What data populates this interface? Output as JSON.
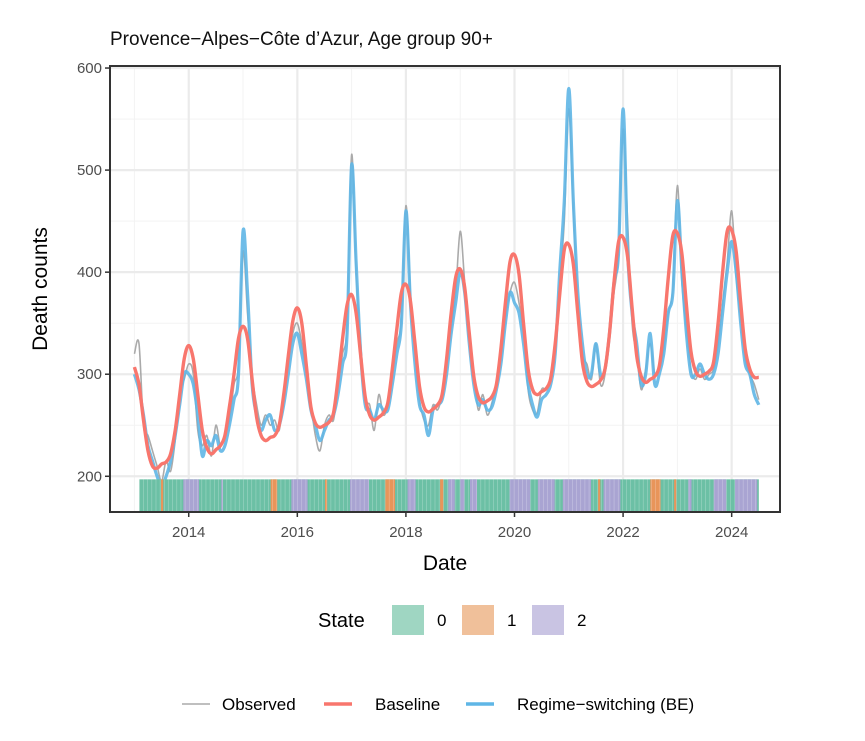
{
  "chart_data": {
    "type": "line",
    "title": "Provence−Alpes−Côte d’Azur, Age group 90+",
    "xlabel": "Date",
    "ylabel": "Death counts",
    "xlim": [
      2012.55,
      2024.89
    ],
    "ylim": [
      165,
      602
    ],
    "x_ticks": [
      2014,
      2016,
      2018,
      2020,
      2022,
      2024
    ],
    "x_tick_labels": [
      "2014",
      "2016",
      "2018",
      "2020",
      "2022",
      "2024"
    ],
    "y_ticks": [
      200,
      300,
      400,
      500,
      600
    ],
    "y_tick_labels": [
      "200",
      "300",
      "400",
      "500",
      "600"
    ],
    "grid": true,
    "x_start": 2013.0,
    "x_step_years": 0.083333,
    "series": [
      {
        "name": "Observed",
        "color": "#aaaaaa",
        "values": [
          320,
          330,
          250,
          240,
          225,
          210,
          195,
          215,
          205,
          235,
          280,
          295,
          310,
          300,
          245,
          230,
          240,
          220,
          250,
          230,
          240,
          255,
          290,
          310,
          420,
          360,
          300,
          270,
          250,
          260,
          250,
          255,
          245,
          280,
          310,
          340,
          350,
          330,
          300,
          270,
          240,
          225,
          250,
          260,
          255,
          290,
          320,
          350,
          515,
          400,
          330,
          275,
          270,
          245,
          280,
          260,
          270,
          300,
          330,
          355,
          465,
          380,
          320,
          275,
          255,
          250,
          270,
          265,
          280,
          310,
          345,
          380,
          440,
          390,
          340,
          300,
          265,
          280,
          260,
          272,
          290,
          315,
          355,
          380,
          390,
          370,
          340,
          285,
          265,
          262,
          285,
          285,
          295,
          330,
          390,
          450,
          560,
          460,
          370,
          320,
          310,
          295,
          330,
          290,
          300,
          345,
          380,
          420,
          540,
          450,
          350,
          320,
          285,
          305,
          330,
          300,
          305,
          325,
          360,
          385,
          485,
          390,
          345,
          305,
          295,
          305,
          295,
          300,
          305,
          330,
          370,
          410,
          460,
          395,
          355,
          315,
          300,
          290,
          275
        ]
      },
      {
        "name": "Regime−switching (BE)",
        "color": "#5fb6e6",
        "values": [
          300,
          285,
          260,
          230,
          215,
          200,
          190,
          200,
          215,
          240,
          270,
          300,
          300,
          290,
          260,
          220,
          235,
          230,
          240,
          225,
          230,
          250,
          275,
          300,
          440,
          380,
          290,
          260,
          245,
          255,
          260,
          245,
          250,
          270,
          300,
          330,
          340,
          320,
          295,
          265,
          250,
          235,
          245,
          255,
          260,
          280,
          310,
          340,
          505,
          410,
          320,
          270,
          265,
          255,
          270,
          265,
          265,
          290,
          320,
          350,
          460,
          370,
          310,
          270,
          260,
          240,
          265,
          270,
          275,
          300,
          340,
          370,
          400,
          380,
          330,
          290,
          270,
          275,
          265,
          268,
          285,
          310,
          350,
          380,
          370,
          360,
          330,
          290,
          270,
          258,
          275,
          280,
          290,
          320,
          400,
          470,
          580,
          470,
          380,
          330,
          300,
          300,
          330,
          300,
          305,
          340,
          390,
          420,
          560,
          420,
          360,
          330,
          290,
          300,
          340,
          290,
          300,
          320,
          360,
          380,
          470,
          400,
          340,
          300,
          300,
          310,
          300,
          295,
          300,
          320,
          360,
          400,
          430,
          400,
          350,
          310,
          300,
          280,
          270
        ]
      },
      {
        "name": "Baseline",
        "color": "#f8766d",
        "values": [
          307,
          290,
          255,
          225,
          210,
          208,
          212,
          214,
          222,
          245,
          280,
          315,
          328,
          315,
          280,
          245,
          228,
          222,
          226,
          230,
          240,
          268,
          300,
          335,
          347,
          335,
          295,
          258,
          240,
          235,
          238,
          240,
          250,
          280,
          318,
          352,
          365,
          350,
          308,
          268,
          252,
          248,
          250,
          253,
          262,
          295,
          335,
          368,
          378,
          360,
          318,
          278,
          260,
          255,
          258,
          262,
          272,
          305,
          345,
          380,
          388,
          372,
          330,
          288,
          268,
          263,
          266,
          270,
          280,
          315,
          360,
          395,
          403,
          385,
          340,
          298,
          278,
          272,
          274,
          278,
          290,
          325,
          370,
          410,
          417,
          398,
          350,
          305,
          285,
          280,
          283,
          286,
          296,
          330,
          378,
          422,
          427,
          408,
          360,
          312,
          293,
          288,
          290,
          294,
          305,
          340,
          390,
          430,
          434,
          415,
          365,
          318,
          298,
          292,
          295,
          298,
          308,
          345,
          395,
          436,
          438,
          418,
          368,
          322,
          303,
          298,
          300,
          303,
          312,
          350,
          400,
          440,
          441,
          420,
          370,
          325,
          305,
          297,
          297
        ]
      }
    ],
    "state_range": [
      2013.09,
      2024.5
    ],
    "state_default": "0",
    "state_segments": [
      {
        "start": 2013.49,
        "end": 2013.53,
        "state": "1"
      },
      {
        "start": 2013.9,
        "end": 2014.19,
        "state": "2"
      },
      {
        "start": 2014.6,
        "end": 2014.63,
        "state": "2"
      },
      {
        "start": 2015.51,
        "end": 2015.63,
        "state": "1"
      },
      {
        "start": 2015.89,
        "end": 2016.19,
        "state": "2"
      },
      {
        "start": 2016.51,
        "end": 2016.55,
        "state": "1"
      },
      {
        "start": 2016.97,
        "end": 2017.32,
        "state": "2"
      },
      {
        "start": 2017.62,
        "end": 2017.8,
        "state": "1"
      },
      {
        "start": 2018.03,
        "end": 2018.18,
        "state": "2"
      },
      {
        "start": 2018.63,
        "end": 2018.69,
        "state": "1"
      },
      {
        "start": 2018.78,
        "end": 2018.9,
        "state": "2"
      },
      {
        "start": 2019.0,
        "end": 2019.08,
        "state": "2"
      },
      {
        "start": 2019.18,
        "end": 2019.31,
        "state": "2"
      },
      {
        "start": 2019.91,
        "end": 2020.29,
        "state": "2"
      },
      {
        "start": 2020.43,
        "end": 2020.74,
        "state": "2"
      },
      {
        "start": 2020.89,
        "end": 2021.41,
        "state": "2"
      },
      {
        "start": 2021.54,
        "end": 2021.58,
        "state": "1"
      },
      {
        "start": 2021.64,
        "end": 2021.95,
        "state": "2"
      },
      {
        "start": 2022.5,
        "end": 2022.69,
        "state": "1"
      },
      {
        "start": 2022.94,
        "end": 2022.98,
        "state": "1"
      },
      {
        "start": 2023.2,
        "end": 2023.26,
        "state": "2"
      },
      {
        "start": 2023.67,
        "end": 2023.9,
        "state": "2"
      },
      {
        "start": 2024.06,
        "end": 2024.47,
        "state": "2"
      }
    ],
    "state_colors": {
      "0": "#6cc0a5",
      "1": "#e8955a",
      "2": "#a9a4d2"
    },
    "legend_state": {
      "title": "State",
      "items": [
        {
          "label": "0",
          "color": "#9fd6c2"
        },
        {
          "label": "1",
          "color": "#f0c09a"
        },
        {
          "label": "2",
          "color": "#c9c4e3"
        }
      ]
    },
    "legend_series": {
      "placement": "bottom",
      "items": [
        {
          "label": "Observed",
          "color": "#aaaaaa"
        },
        {
          "label": "Baseline",
          "color": "#f8766d"
        },
        {
          "label": "Regime−switching (BE)",
          "color": "#5fb6e6"
        }
      ]
    }
  }
}
